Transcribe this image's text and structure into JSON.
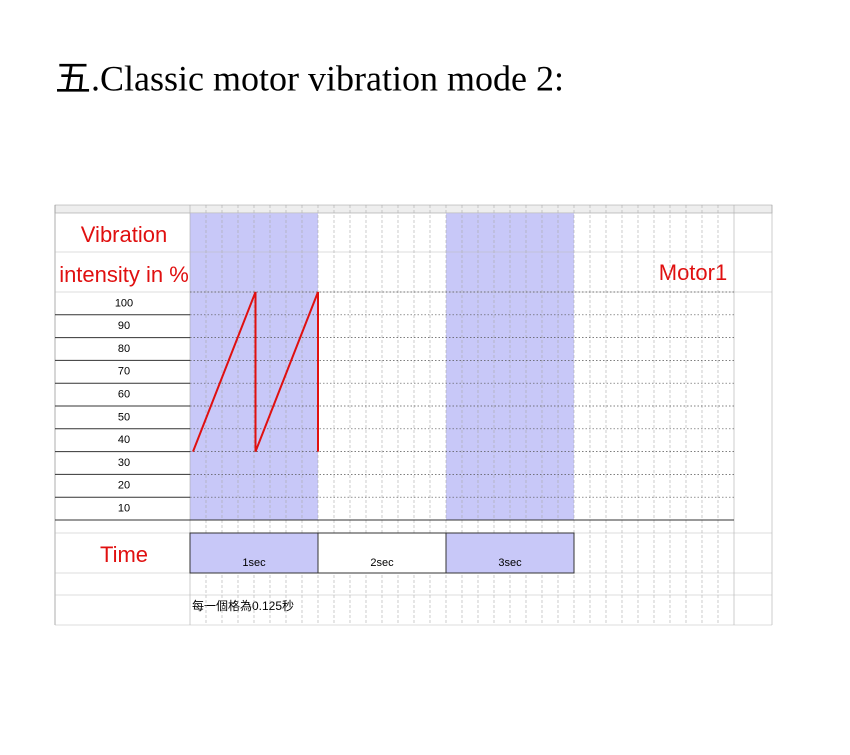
{
  "header": {
    "title": "五.Classic motor vibration mode 2:"
  },
  "sheet": {
    "label_line1": "Vibration",
    "label_line2": "intensity in  %",
    "motor": "Motor1",
    "yticks": [
      100,
      90,
      80,
      70,
      60,
      50,
      40,
      30,
      20,
      10
    ],
    "time_label": "Time",
    "time_blocks": [
      "1sec",
      "2sec",
      "3sec"
    ],
    "note": "每一個格為0.125秒",
    "line": {
      "color": "#e01010",
      "x": [
        0,
        0.5,
        0.5,
        1,
        1
      ],
      "values": [
        30,
        100,
        30,
        100,
        30
      ]
    }
  }
}
